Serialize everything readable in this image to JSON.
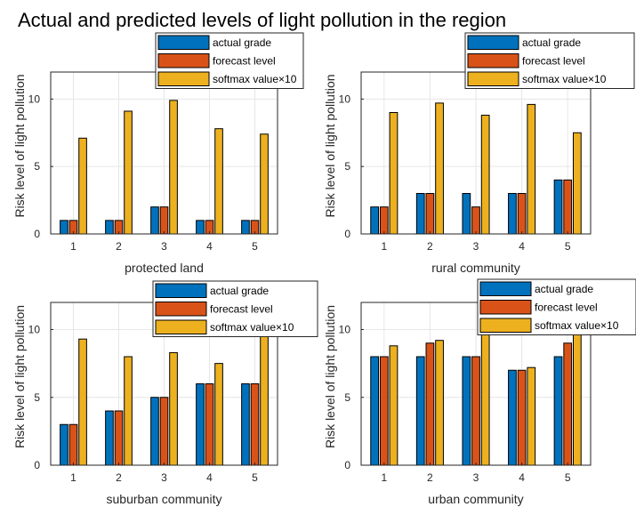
{
  "title": "Actual and predicted levels of light pollution in the region",
  "colors": {
    "actual": "#0072bd",
    "forecast": "#d95319",
    "softmax": "#edb120",
    "grid": "#e6e6e6",
    "axis": "#262626"
  },
  "chart_data": [
    {
      "type": "bar",
      "xlabel": "protected land",
      "ylabel": "Risk level of light pollution",
      "categories": [
        "1",
        "2",
        "3",
        "4",
        "5"
      ],
      "ylim": [
        0,
        12
      ],
      "yticks": [
        "0",
        "5",
        "10"
      ],
      "grid": true,
      "legend_position": "top-right",
      "series": [
        {
          "name": "actual grade",
          "values": [
            1,
            1,
            2,
            1,
            1
          ]
        },
        {
          "name": "forecast level",
          "values": [
            1,
            1,
            2,
            1,
            1
          ]
        },
        {
          "name": "softmax value×10",
          "values": [
            7.1,
            9.1,
            9.9,
            7.8,
            7.4
          ]
        }
      ]
    },
    {
      "type": "bar",
      "xlabel": "rural community",
      "ylabel": "Risk level of light pollution",
      "categories": [
        "1",
        "2",
        "3",
        "4",
        "5"
      ],
      "ylim": [
        0,
        12
      ],
      "yticks": [
        "0",
        "5",
        "10"
      ],
      "grid": true,
      "legend_position": "top-right",
      "series": [
        {
          "name": "actual grade",
          "values": [
            2,
            3,
            3,
            3,
            4
          ]
        },
        {
          "name": "forecast level",
          "values": [
            2,
            3,
            2,
            3,
            4
          ]
        },
        {
          "name": "softmax value×10",
          "values": [
            9.0,
            9.7,
            8.8,
            9.6,
            7.5
          ]
        }
      ]
    },
    {
      "type": "bar",
      "xlabel": "suburban community",
      "ylabel": "Risk level of light pollution",
      "categories": [
        "1",
        "2",
        "3",
        "4",
        "5"
      ],
      "ylim": [
        0,
        12
      ],
      "yticks": [
        "0",
        "5",
        "10"
      ],
      "grid": true,
      "legend_position": "top-right",
      "series": [
        {
          "name": "actual grade",
          "values": [
            3,
            4,
            5,
            6,
            6
          ]
        },
        {
          "name": "forecast level",
          "values": [
            3,
            4,
            5,
            6,
            6
          ]
        },
        {
          "name": "softmax value×10",
          "values": [
            9.3,
            8.0,
            8.3,
            7.5,
            10.0
          ]
        }
      ]
    },
    {
      "type": "bar",
      "xlabel": "urban community",
      "ylabel": "Risk level of light pollution",
      "categories": [
        "1",
        "2",
        "3",
        "4",
        "5"
      ],
      "ylim": [
        0,
        12
      ],
      "yticks": [
        "0",
        "5",
        "10"
      ],
      "grid": true,
      "legend_position": "top-right",
      "series": [
        {
          "name": "actual grade",
          "values": [
            8,
            8,
            8,
            7,
            8
          ]
        },
        {
          "name": "forecast level",
          "values": [
            8,
            9,
            8,
            7,
            9
          ]
        },
        {
          "name": "softmax value×10",
          "values": [
            8.8,
            9.2,
            10.0,
            7.2,
            10.0
          ]
        }
      ]
    }
  ]
}
